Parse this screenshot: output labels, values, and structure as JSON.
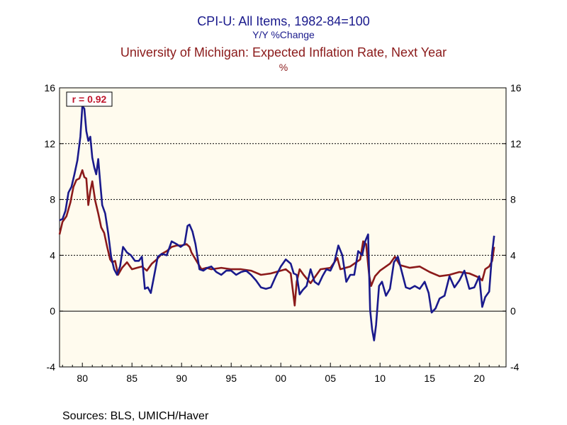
{
  "chart_data": {
    "type": "line",
    "title_line1": "CPI-U: All Items, 1982-84=100",
    "title_line2": "Y/Y %Change",
    "title_line3": "University of Michigan: Expected Inflation Rate, Next Year",
    "title_line4": "%",
    "annotation": "r = 0.92",
    "source": "Sources:  BLS, UMICH/Haver",
    "xlim": [
      1977.7,
      2022.7
    ],
    "ylim": [
      -4,
      16
    ],
    "y_ticks": [
      "-4",
      "0",
      "4",
      "8",
      "12",
      "16"
    ],
    "y_tick_values": [
      -4,
      0,
      4,
      8,
      12,
      16
    ],
    "x_ticks": [
      "80",
      "85",
      "90",
      "95",
      "00",
      "05",
      "10",
      "15",
      "20"
    ],
    "x_tick_values": [
      1980,
      1985,
      1990,
      1995,
      2000,
      2005,
      2010,
      2015,
      2020
    ],
    "grid_lines_y": [
      0,
      4,
      8,
      12
    ],
    "series": [
      {
        "color": "#1a1a8c",
        "x": [
          1977.7,
          1978.0,
          1978.3,
          1978.6,
          1978.9,
          1979.2,
          1979.5,
          1979.8,
          1980.0,
          1980.2,
          1980.4,
          1980.6,
          1980.8,
          1981.0,
          1981.2,
          1981.4,
          1981.6,
          1981.8,
          1982.0,
          1982.3,
          1982.6,
          1982.9,
          1983.2,
          1983.5,
          1983.8,
          1984.1,
          1984.5,
          1984.9,
          1985.3,
          1985.7,
          1986.0,
          1986.3,
          1986.6,
          1986.9,
          1987.2,
          1987.6,
          1988.0,
          1988.5,
          1989.0,
          1989.5,
          1989.9,
          1990.3,
          1990.6,
          1990.8,
          1991.1,
          1991.4,
          1991.8,
          1992.2,
          1992.6,
          1993.0,
          1993.5,
          1994.0,
          1994.5,
          1995.0,
          1995.5,
          1996.0,
          1996.5,
          1997.0,
          1997.5,
          1998.0,
          1998.5,
          1999.0,
          1999.5,
          2000.0,
          2000.5,
          2001.0,
          2001.3,
          2001.6,
          2001.9,
          2002.2,
          2002.6,
          2003.0,
          2003.4,
          2003.8,
          2004.2,
          2004.6,
          2005.0,
          2005.4,
          2005.8,
          2006.2,
          2006.6,
          2007.0,
          2007.4,
          2007.8,
          2008.2,
          2008.5,
          2008.8,
          2009.0,
          2009.2,
          2009.4,
          2009.6,
          2009.9,
          2010.2,
          2010.6,
          2011.0,
          2011.4,
          2011.8,
          2012.2,
          2012.6,
          2013.0,
          2013.5,
          2014.0,
          2014.5,
          2014.9,
          2015.2,
          2015.6,
          2016.0,
          2016.5,
          2017.0,
          2017.5,
          2018.0,
          2018.5,
          2019.0,
          2019.5,
          2020.0,
          2020.3,
          2020.6,
          2021.0,
          2021.3,
          2021.5
        ],
        "values": [
          6.5,
          6.6,
          7.2,
          8.5,
          8.9,
          9.8,
          10.8,
          12.5,
          14.7,
          14.5,
          12.9,
          12.2,
          12.5,
          11.0,
          10.3,
          9.8,
          10.9,
          9.2,
          7.6,
          7.0,
          5.6,
          3.9,
          3.0,
          2.6,
          3.2,
          4.6,
          4.2,
          4.0,
          3.6,
          3.6,
          3.9,
          1.6,
          1.7,
          1.3,
          2.4,
          3.9,
          4.1,
          4.0,
          5.0,
          4.8,
          4.6,
          4.8,
          6.1,
          6.2,
          5.7,
          4.8,
          3.0,
          2.9,
          3.1,
          3.2,
          2.8,
          2.6,
          2.9,
          2.9,
          2.6,
          2.8,
          2.9,
          2.6,
          2.2,
          1.7,
          1.6,
          1.7,
          2.5,
          3.2,
          3.7,
          3.4,
          2.7,
          2.6,
          1.2,
          1.5,
          1.8,
          3.0,
          2.1,
          1.9,
          2.5,
          3.0,
          2.9,
          3.5,
          4.7,
          4.0,
          2.1,
          2.6,
          2.6,
          4.3,
          4.0,
          5.0,
          5.5,
          0.1,
          -1.3,
          -2.1,
          -1.0,
          1.8,
          2.1,
          1.1,
          1.6,
          3.5,
          3.9,
          2.8,
          1.7,
          1.6,
          1.8,
          1.6,
          2.1,
          1.3,
          -0.1,
          0.2,
          0.9,
          1.1,
          2.5,
          1.7,
          2.2,
          2.9,
          1.6,
          1.7,
          2.5,
          0.3,
          1.0,
          1.4,
          4.2,
          5.4
        ]
      },
      {
        "color": "#8b1a1a",
        "x": [
          1977.7,
          1978.0,
          1978.4,
          1978.8,
          1979.1,
          1979.4,
          1979.7,
          1980.0,
          1980.2,
          1980.4,
          1980.6,
          1980.8,
          1981.0,
          1981.3,
          1981.6,
          1981.9,
          1982.2,
          1982.5,
          1982.8,
          1983.0,
          1983.3,
          1983.6,
          1984.0,
          1984.5,
          1985.0,
          1985.5,
          1986.0,
          1986.5,
          1987.0,
          1987.5,
          1988.0,
          1988.5,
          1989.0,
          1989.5,
          1990.0,
          1990.5,
          1990.8,
          1991.0,
          1991.5,
          1992.0,
          1992.5,
          1993.0,
          1994.0,
          1995.0,
          1996.0,
          1997.0,
          1998.0,
          1999.0,
          2000.0,
          2000.5,
          2001.0,
          2001.4,
          2001.6,
          2001.9,
          2002.3,
          2003.0,
          2004.0,
          2005.0,
          2005.7,
          2006.0,
          2007.0,
          2008.0,
          2008.3,
          2008.6,
          2008.9,
          2009.1,
          2009.5,
          2010.0,
          2011.0,
          2011.5,
          2012.0,
          2013.0,
          2014.0,
          2015.0,
          2016.0,
          2017.0,
          2018.0,
          2019.0,
          2020.0,
          2020.3,
          2020.6,
          2021.0,
          2021.3,
          2021.5
        ],
        "values": [
          5.5,
          6.4,
          6.8,
          7.8,
          8.9,
          9.4,
          9.5,
          10.1,
          9.6,
          9.5,
          7.6,
          8.6,
          9.3,
          7.9,
          7.0,
          6.0,
          5.6,
          4.6,
          3.7,
          3.5,
          3.6,
          2.6,
          3.1,
          3.5,
          3.0,
          3.1,
          3.2,
          2.9,
          3.4,
          3.7,
          4.1,
          4.3,
          4.6,
          4.7,
          4.7,
          4.8,
          4.6,
          4.2,
          3.6,
          3.0,
          3.1,
          3.0,
          3.1,
          3.0,
          3.0,
          2.9,
          2.6,
          2.7,
          2.9,
          3.0,
          2.7,
          0.4,
          2.1,
          3.0,
          2.6,
          2.0,
          3.0,
          3.1,
          3.8,
          3.0,
          3.2,
          3.7,
          5.0,
          4.8,
          2.6,
          1.8,
          2.5,
          2.9,
          3.4,
          3.9,
          3.3,
          3.1,
          3.2,
          2.8,
          2.5,
          2.6,
          2.8,
          2.7,
          2.4,
          2.2,
          3.0,
          3.2,
          3.6,
          4.6
        ]
      }
    ]
  }
}
